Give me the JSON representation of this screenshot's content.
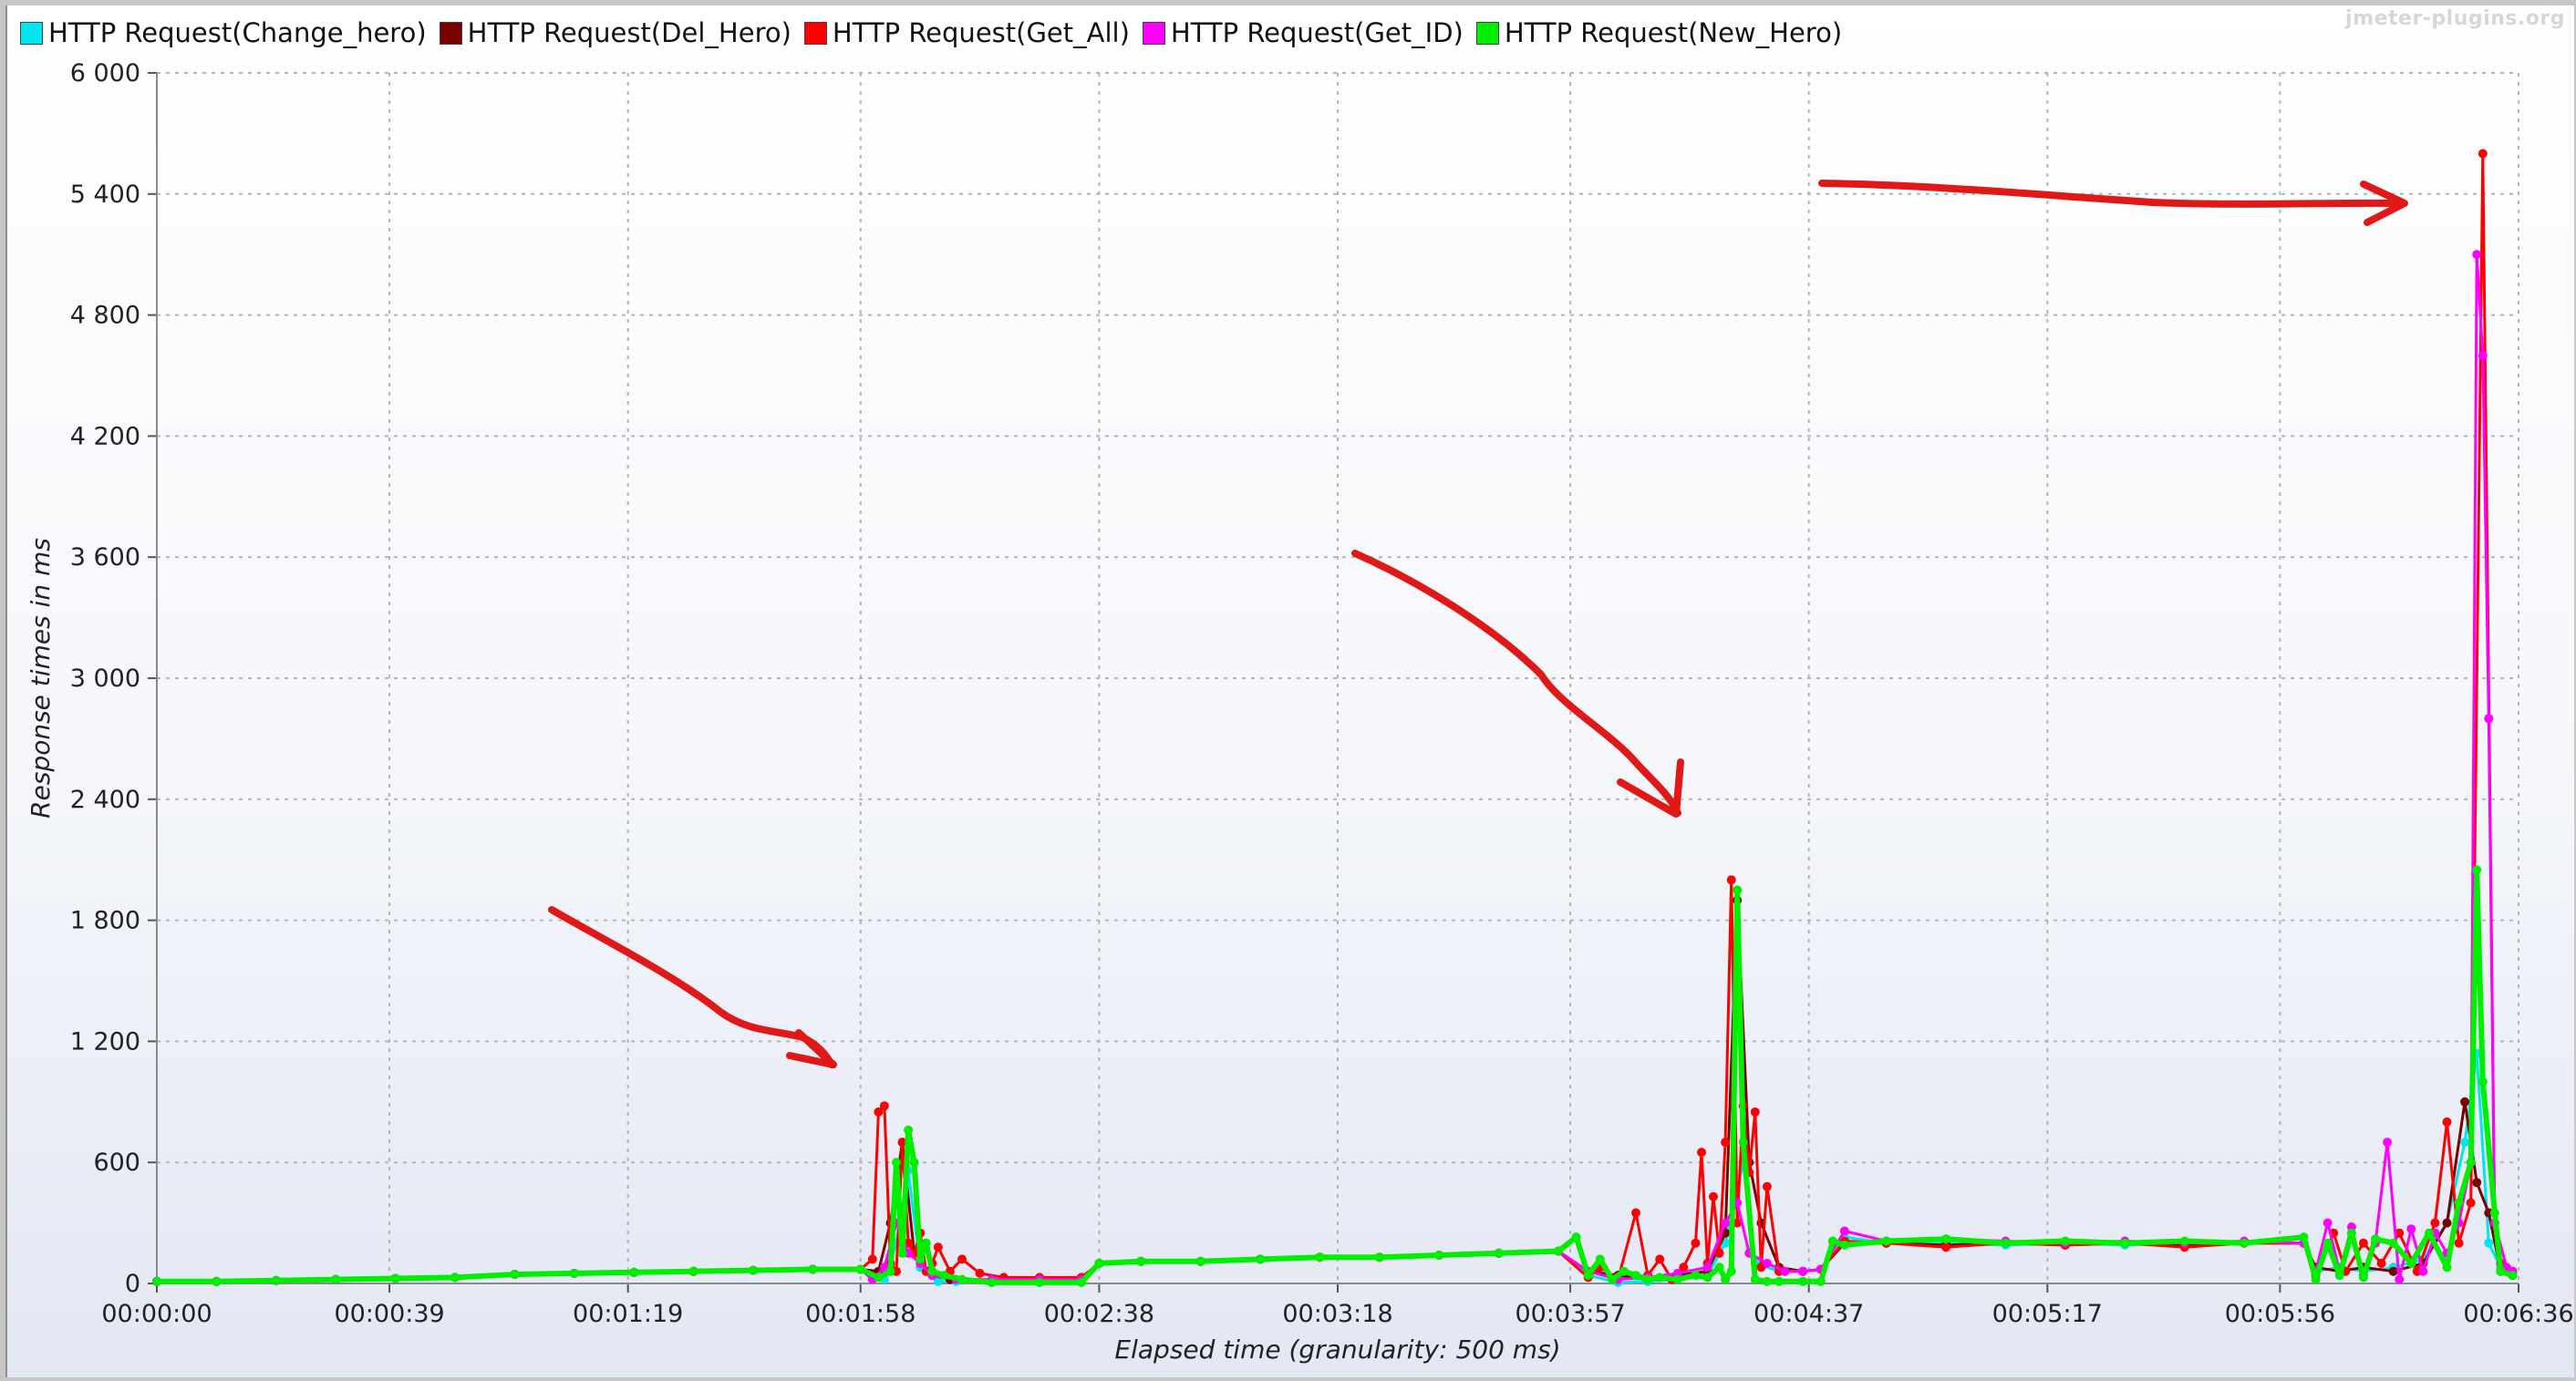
{
  "watermark": "jmeter-plugins.org",
  "colors": {
    "Change_hero": "#00e5f0",
    "Del_Hero": "#7a0000",
    "Get_All": "#ff0000",
    "Get_ID": "#ff00ff",
    "New_Hero": "#00ee00",
    "annotation": "#e01818",
    "grid": "#b4b4b4"
  },
  "chart_data": {
    "type": "line",
    "xlabel": "Elapsed time (granularity: 500 ms)",
    "ylabel": "Response times in ms",
    "xlim": [
      0,
      396
    ],
    "ylim": [
      0,
      6000
    ],
    "x_unit": "seconds elapsed",
    "yticks": [
      0,
      600,
      1200,
      1800,
      2400,
      3000,
      3600,
      4200,
      4800,
      5400,
      6000
    ],
    "ytick_labels": [
      "0",
      "600",
      "1 200",
      "1 800",
      "2 400",
      "3 000",
      "3 600",
      "4 200",
      "4 800",
      "5 400",
      "6 000"
    ],
    "xticks": [
      0,
      39,
      79,
      118,
      158,
      198,
      237,
      277,
      317,
      356,
      396
    ],
    "xtick_labels": [
      "00:00:00",
      "00:00:39",
      "00:01:19",
      "00:01:58",
      "00:02:38",
      "00:03:18",
      "00:03:57",
      "00:04:37",
      "00:05:17",
      "00:05:56",
      "00:06:36"
    ],
    "grid": true,
    "legend_position": "top",
    "series": [
      {
        "name": "HTTP Request(Change_hero)",
        "key": "Change_hero",
        "x": [
          0,
          10,
          20,
          30,
          40,
          50,
          60,
          70,
          80,
          90,
          100,
          110,
          118,
          122,
          124,
          126,
          128,
          131,
          134,
          140,
          148,
          155,
          158,
          165,
          175,
          185,
          195,
          205,
          215,
          225,
          235,
          240,
          245,
          250,
          255,
          260,
          263,
          266,
          268,
          272,
          276,
          279,
          283,
          290,
          300,
          310,
          320,
          330,
          340,
          350,
          360,
          362,
          366,
          370,
          375,
          380,
          384,
          387,
          389,
          391,
          393,
          395
        ],
        "y": [
          10,
          10,
          15,
          20,
          25,
          30,
          45,
          50,
          55,
          60,
          65,
          70,
          70,
          20,
          200,
          560,
          80,
          10,
          10,
          5,
          5,
          5,
          100,
          110,
          110,
          120,
          130,
          130,
          140,
          150,
          160,
          40,
          5,
          10,
          20,
          40,
          200,
          600,
          100,
          60,
          60,
          70,
          230,
          200,
          200,
          190,
          200,
          190,
          200,
          200,
          200,
          60,
          80,
          60,
          80,
          120,
          300,
          700,
          1140,
          200,
          80,
          40
        ]
      },
      {
        "name": "HTTP Request(Del_Hero)",
        "key": "Del_Hero",
        "x": [
          0,
          10,
          20,
          30,
          40,
          50,
          60,
          70,
          80,
          90,
          100,
          110,
          118,
          121,
          123,
          125,
          127,
          130,
          133,
          140,
          148,
          155,
          158,
          165,
          175,
          185,
          195,
          205,
          215,
          225,
          235,
          240,
          245,
          250,
          255,
          260,
          263,
          265,
          267,
          269,
          272,
          276,
          279,
          283,
          290,
          300,
          310,
          320,
          330,
          340,
          350,
          360,
          362,
          366,
          370,
          375,
          380,
          384,
          387,
          389,
          391,
          393,
          395
        ],
        "y": [
          10,
          10,
          15,
          20,
          25,
          30,
          45,
          50,
          55,
          60,
          65,
          70,
          70,
          60,
          300,
          700,
          150,
          40,
          20,
          10,
          10,
          10,
          100,
          110,
          110,
          120,
          130,
          130,
          140,
          150,
          160,
          60,
          40,
          20,
          40,
          60,
          250,
          1900,
          600,
          300,
          80,
          60,
          70,
          200,
          200,
          190,
          200,
          190,
          200,
          190,
          200,
          200,
          80,
          60,
          80,
          60,
          100,
          300,
          900,
          500,
          350,
          60,
          40
        ]
      },
      {
        "name": "HTTP Request(Get_All)",
        "key": "Get_All",
        "x": [
          0,
          10,
          20,
          30,
          40,
          50,
          60,
          70,
          80,
          90,
          100,
          110,
          118,
          120,
          121,
          122,
          123,
          124,
          125,
          126,
          127,
          128,
          129,
          130,
          131,
          133,
          135,
          138,
          142,
          148,
          155,
          158,
          165,
          175,
          185,
          195,
          205,
          215,
          225,
          235,
          240,
          242,
          245,
          248,
          250,
          252,
          254,
          256,
          258,
          259,
          260,
          261,
          262,
          263,
          264,
          265,
          266,
          267,
          268,
          269,
          270,
          272,
          276,
          279,
          283,
          290,
          300,
          310,
          320,
          330,
          340,
          350,
          360,
          362,
          365,
          367,
          370,
          373,
          376,
          379,
          382,
          384,
          386,
          388,
          390,
          392,
          393,
          394,
          395
        ],
        "y": [
          10,
          10,
          15,
          20,
          25,
          30,
          45,
          50,
          55,
          60,
          65,
          70,
          70,
          120,
          850,
          880,
          100,
          60,
          700,
          200,
          150,
          250,
          60,
          100,
          180,
          60,
          120,
          50,
          30,
          30,
          30,
          100,
          110,
          110,
          120,
          130,
          130,
          140,
          150,
          160,
          30,
          80,
          20,
          350,
          40,
          120,
          20,
          80,
          200,
          650,
          100,
          430,
          150,
          700,
          2000,
          300,
          880,
          550,
          850,
          80,
          480,
          60,
          60,
          70,
          210,
          200,
          180,
          200,
          190,
          200,
          180,
          200,
          200,
          40,
          250,
          60,
          200,
          100,
          250,
          60,
          300,
          800,
          200,
          400,
          5600,
          300,
          100,
          60,
          60
        ]
      },
      {
        "name": "HTTP Request(Get_ID)",
        "key": "Get_ID",
        "x": [
          0,
          10,
          20,
          30,
          40,
          50,
          60,
          70,
          80,
          90,
          100,
          110,
          118,
          120,
          122,
          124,
          126,
          128,
          130,
          134,
          140,
          148,
          155,
          158,
          165,
          175,
          185,
          195,
          205,
          215,
          225,
          235,
          240,
          245,
          250,
          255,
          260,
          263,
          265,
          267,
          270,
          273,
          276,
          279,
          283,
          290,
          300,
          310,
          320,
          330,
          340,
          350,
          360,
          362,
          364,
          366,
          368,
          370,
          372,
          374,
          376,
          378,
          380,
          382,
          384,
          386,
          388,
          389,
          390,
          391,
          392,
          394,
          395
        ],
        "y": [
          10,
          10,
          15,
          20,
          25,
          30,
          45,
          50,
          55,
          60,
          65,
          70,
          70,
          20,
          80,
          300,
          150,
          100,
          40,
          20,
          20,
          20,
          20,
          100,
          110,
          110,
          120,
          130,
          130,
          140,
          150,
          160,
          60,
          20,
          30,
          50,
          80,
          300,
          400,
          150,
          100,
          60,
          60,
          70,
          260,
          210,
          220,
          210,
          200,
          210,
          200,
          210,
          200,
          60,
          300,
          60,
          280,
          40,
          200,
          700,
          20,
          270,
          60,
          250,
          150,
          300,
          600,
          5100,
          4600,
          2800,
          300,
          80,
          60
        ]
      },
      {
        "name": "HTTP Request(New_Hero)",
        "key": "New_Hero",
        "x": [
          0,
          10,
          20,
          30,
          40,
          50,
          60,
          70,
          80,
          90,
          100,
          110,
          118,
          121,
          123,
          124,
          125,
          126,
          127,
          128,
          129,
          130,
          132,
          135,
          140,
          148,
          155,
          158,
          165,
          175,
          185,
          195,
          205,
          215,
          225,
          235,
          238,
          240,
          242,
          244,
          246,
          248,
          250,
          252,
          255,
          258,
          260,
          262,
          263,
          264,
          265,
          266,
          268,
          270,
          272,
          276,
          279,
          281,
          283,
          290,
          300,
          310,
          320,
          330,
          340,
          350,
          360,
          362,
          364,
          366,
          368,
          370,
          372,
          375,
          378,
          381,
          384,
          386,
          388,
          389,
          390,
          392,
          393,
          395
        ],
        "y": [
          10,
          10,
          15,
          20,
          25,
          30,
          45,
          50,
          55,
          60,
          65,
          70,
          70,
          30,
          60,
          600,
          150,
          760,
          600,
          120,
          200,
          60,
          40,
          20,
          5,
          5,
          5,
          100,
          110,
          110,
          120,
          130,
          130,
          140,
          150,
          160,
          230,
          40,
          120,
          20,
          60,
          40,
          20,
          30,
          20,
          40,
          30,
          80,
          20,
          60,
          1950,
          700,
          20,
          10,
          10,
          10,
          10,
          210,
          190,
          210,
          220,
          200,
          210,
          200,
          210,
          200,
          230,
          20,
          200,
          40,
          250,
          30,
          220,
          200,
          100,
          250,
          80,
          400,
          600,
          2050,
          1000,
          350,
          60,
          40
        ]
      }
    ]
  }
}
